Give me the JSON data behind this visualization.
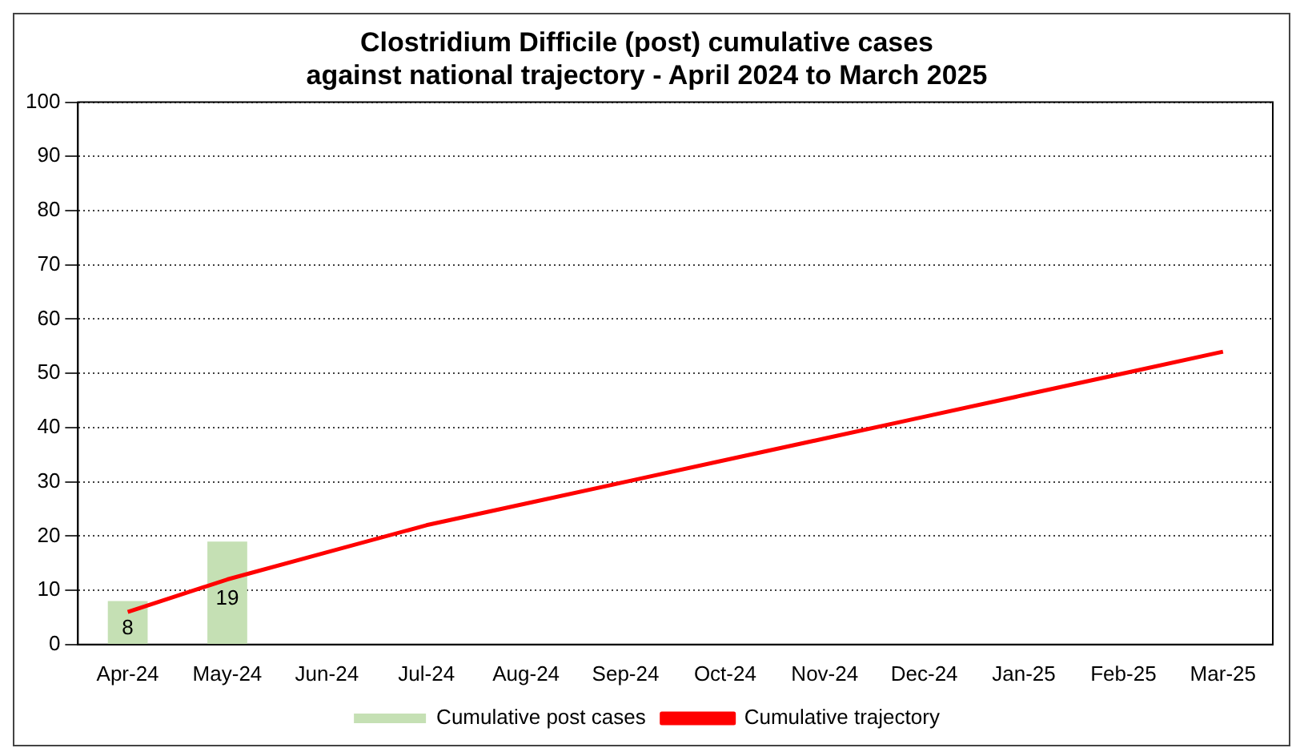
{
  "chart_data": {
    "type": "bar",
    "title": "Clostridium Difficile (post) cumulative cases\nagainst national trajectory - April 2024 to March 2025",
    "categories": [
      "Apr-24",
      "May-24",
      "Jun-24",
      "Jul-24",
      "Aug-24",
      "Sep-24",
      "Oct-24",
      "Nov-24",
      "Dec-24",
      "Jan-25",
      "Feb-25",
      "Mar-25"
    ],
    "series": [
      {
        "name": "Cumulative post cases",
        "color": "#c5e0b4",
        "values": [
          8,
          19,
          null,
          null,
          null,
          null,
          null,
          null,
          null,
          null,
          null,
          null
        ],
        "value_labels": [
          "8",
          "19",
          null,
          null,
          null,
          null,
          null,
          null,
          null,
          null,
          null,
          null
        ]
      },
      {
        "name": "Cumulative trajectory",
        "type": "line",
        "color": "#ff0000",
        "values": [
          6,
          12,
          17,
          22,
          26,
          30,
          34,
          38,
          42,
          46,
          50,
          54
        ]
      }
    ],
    "ylim": [
      0,
      100
    ],
    "yticks": [
      0,
      10,
      20,
      30,
      40,
      50,
      60,
      70,
      80,
      90,
      100
    ],
    "grid": "y",
    "legend": "bottom",
    "marker": "none",
    "line_style": "solid"
  }
}
